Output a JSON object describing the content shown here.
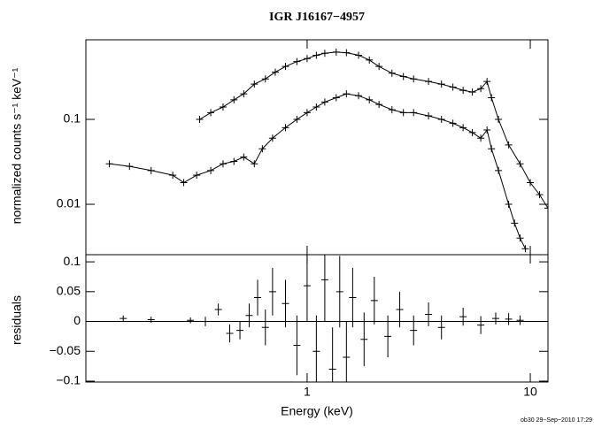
{
  "chart_data": [
    {
      "type": "scatter",
      "title": "IGR J16167−4957",
      "y_label": "normalized counts s⁻¹ keV⁻¹",
      "xlog": true,
      "ylog": true,
      "xlim": [
        0.102,
        12.0
      ],
      "ylim": [
        0.00255,
        0.866
      ],
      "xticks": [
        1,
        10
      ],
      "yticks": [
        0.1,
        0.01
      ],
      "series": [
        {
          "color": "#000000",
          "x": [
            0.33,
            0.37,
            0.42,
            0.47,
            0.52,
            0.58,
            0.65,
            0.72,
            0.8,
            0.9,
            1.0,
            1.1,
            1.2,
            1.35,
            1.5,
            1.7,
            1.9,
            2.1,
            2.4,
            2.7,
            3.0,
            3.5,
            4.0,
            4.5,
            5.0,
            5.5,
            6.0,
            6.4,
            6.7,
            7.2,
            8.0,
            9.0,
            10.0,
            11.0,
            12.0
          ],
          "values": [
            0.1,
            0.12,
            0.14,
            0.17,
            0.2,
            0.26,
            0.3,
            0.36,
            0.42,
            0.48,
            0.52,
            0.57,
            0.6,
            0.62,
            0.61,
            0.57,
            0.5,
            0.42,
            0.35,
            0.32,
            0.3,
            0.28,
            0.26,
            0.24,
            0.22,
            0.21,
            0.23,
            0.28,
            0.18,
            0.1,
            0.05,
            0.03,
            0.018,
            0.013,
            0.009
          ]
        },
        {
          "color": "#000000",
          "x": [
            0.13,
            0.16,
            0.2,
            0.25,
            0.28,
            0.32,
            0.37,
            0.42,
            0.47,
            0.52,
            0.58,
            0.63,
            0.7,
            0.8,
            0.9,
            1.0,
            1.1,
            1.2,
            1.35,
            1.5,
            1.7,
            1.9,
            2.1,
            2.4,
            2.7,
            3.0,
            3.5,
            4.0,
            4.5,
            5.0,
            5.5,
            6.0,
            6.4,
            6.7,
            7.2,
            8.0,
            8.5,
            9.0,
            9.5
          ],
          "values": [
            0.03,
            0.028,
            0.025,
            0.022,
            0.018,
            0.022,
            0.025,
            0.03,
            0.032,
            0.036,
            0.03,
            0.045,
            0.06,
            0.08,
            0.1,
            0.12,
            0.14,
            0.16,
            0.18,
            0.2,
            0.19,
            0.17,
            0.15,
            0.13,
            0.12,
            0.12,
            0.11,
            0.1,
            0.09,
            0.08,
            0.07,
            0.06,
            0.075,
            0.045,
            0.025,
            0.01,
            0.006,
            0.004,
            0.003
          ]
        }
      ]
    },
    {
      "type": "errorbar",
      "y_label": "residuals",
      "x_label": "Energy (keV)",
      "xlog": true,
      "xlim": [
        0.102,
        12.0
      ],
      "ylim": [
        -0.1015,
        0.112
      ],
      "xticks": [
        1,
        10
      ],
      "yticks": [
        0.1,
        0.05,
        0,
        {
          "value": -0.05,
          "label": "−0.05"
        },
        {
          "value": -0.1,
          "label": "−0.1"
        }
      ],
      "series": [
        {
          "color": "#000000",
          "x": [
            0.15,
            0.2,
            0.3,
            0.35,
            0.4,
            0.45,
            0.5,
            0.55,
            0.6,
            0.65,
            0.7,
            0.8,
            0.9,
            1.0,
            1.1,
            1.2,
            1.3,
            1.4,
            1.5,
            1.6,
            1.8,
            2.0,
            2.3,
            2.6,
            3.0,
            3.5,
            4.0,
            5.0,
            6.0,
            7.0,
            8.0,
            9.0
          ],
          "values": [
            0.005,
            0.003,
            0.002,
            0,
            0.02,
            -0.02,
            -0.015,
            0.01,
            0.04,
            -0.01,
            0.05,
            0.03,
            -0.04,
            0.06,
            -0.05,
            0.07,
            -0.08,
            0.05,
            -0.06,
            0.04,
            -0.03,
            0.035,
            -0.025,
            0.02,
            -0.015,
            0.012,
            -0.01,
            0.008,
            -0.006,
            0.005,
            0.004,
            0.002
          ],
          "errors": [
            0.005,
            0.005,
            0.005,
            0.008,
            0.01,
            0.015,
            0.015,
            0.02,
            0.03,
            0.03,
            0.04,
            0.04,
            0.05,
            0.06,
            0.06,
            0.07,
            0.07,
            0.06,
            0.06,
            0.05,
            0.045,
            0.04,
            0.035,
            0.03,
            0.025,
            0.02,
            0.02,
            0.015,
            0.015,
            0.01,
            0.01,
            0.008
          ]
        }
      ]
    }
  ],
  "footer": "ob30 29−Sep−2010 17:29"
}
